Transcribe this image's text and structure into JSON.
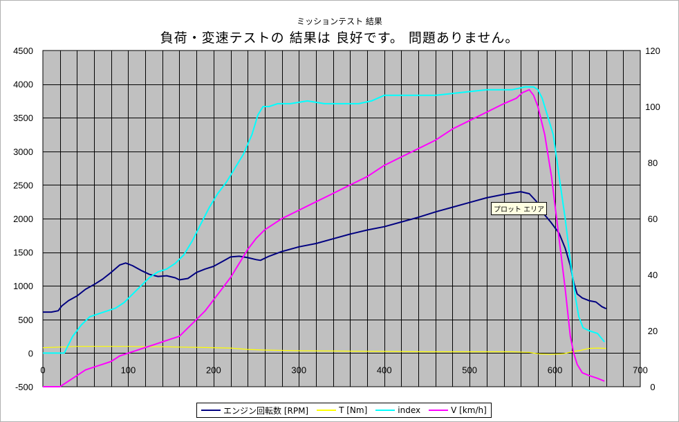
{
  "header": {
    "subtitle": "ミッションテスト 結果",
    "title": "負荷・変速テストの 結果は 良好です。 問題ありません。"
  },
  "tooltip": {
    "text": "プロット エリア"
  },
  "colors": {
    "plot_bg": "#c0c0c0",
    "grid": "#000000"
  },
  "chart_data": {
    "type": "line",
    "title": "負荷・変速テストの 結果は 良好です。 問題ありません。",
    "subtitle": "ミッションテスト 結果",
    "xlim": [
      0,
      700
    ],
    "ylim": [
      -500,
      4500
    ],
    "y2lim": [
      0,
      120
    ],
    "grid": true,
    "legend_position": "bottom",
    "x_ticks": [
      0,
      100,
      200,
      300,
      400,
      500,
      600,
      700
    ],
    "y_ticks": [
      -500,
      0,
      500,
      1000,
      1500,
      2000,
      2500,
      3000,
      3500,
      4000,
      4500
    ],
    "y2_ticks": [
      0,
      20,
      40,
      60,
      80,
      100,
      120
    ],
    "series": [
      {
        "name": "エンジン回転数 [RPM]",
        "axis": "left",
        "color": "#000080",
        "points": [
          [
            0,
            610
          ],
          [
            10,
            610
          ],
          [
            18,
            630
          ],
          [
            22,
            700
          ],
          [
            30,
            780
          ],
          [
            40,
            850
          ],
          [
            50,
            950
          ],
          [
            60,
            1020
          ],
          [
            70,
            1100
          ],
          [
            80,
            1200
          ],
          [
            90,
            1310
          ],
          [
            97,
            1340
          ],
          [
            105,
            1300
          ],
          [
            115,
            1230
          ],
          [
            125,
            1170
          ],
          [
            135,
            1140
          ],
          [
            145,
            1150
          ],
          [
            155,
            1120
          ],
          [
            160,
            1090
          ],
          [
            170,
            1110
          ],
          [
            180,
            1200
          ],
          [
            190,
            1250
          ],
          [
            200,
            1290
          ],
          [
            210,
            1360
          ],
          [
            220,
            1430
          ],
          [
            230,
            1440
          ],
          [
            240,
            1420
          ],
          [
            250,
            1390
          ],
          [
            255,
            1380
          ],
          [
            265,
            1440
          ],
          [
            280,
            1510
          ],
          [
            300,
            1580
          ],
          [
            320,
            1630
          ],
          [
            340,
            1700
          ],
          [
            360,
            1770
          ],
          [
            380,
            1830
          ],
          [
            400,
            1880
          ],
          [
            420,
            1950
          ],
          [
            440,
            2020
          ],
          [
            460,
            2100
          ],
          [
            480,
            2170
          ],
          [
            500,
            2240
          ],
          [
            520,
            2310
          ],
          [
            540,
            2360
          ],
          [
            560,
            2400
          ],
          [
            570,
            2370
          ],
          [
            578,
            2260
          ],
          [
            585,
            2100
          ],
          [
            595,
            1950
          ],
          [
            605,
            1780
          ],
          [
            612,
            1560
          ],
          [
            618,
            1300
          ],
          [
            622,
            1050
          ],
          [
            626,
            880
          ],
          [
            632,
            820
          ],
          [
            640,
            780
          ],
          [
            648,
            760
          ],
          [
            655,
            690
          ],
          [
            660,
            660
          ]
        ]
      },
      {
        "name": "T [Nm]",
        "axis": "left",
        "color": "#ffff00",
        "points": [
          [
            0,
            80
          ],
          [
            20,
            90
          ],
          [
            40,
            100
          ],
          [
            60,
            100
          ],
          [
            80,
            100
          ],
          [
            100,
            100
          ],
          [
            120,
            95
          ],
          [
            140,
            95
          ],
          [
            160,
            90
          ],
          [
            180,
            85
          ],
          [
            200,
            80
          ],
          [
            220,
            75
          ],
          [
            240,
            55
          ],
          [
            260,
            45
          ],
          [
            280,
            40
          ],
          [
            300,
            35
          ],
          [
            350,
            30
          ],
          [
            400,
            25
          ],
          [
            450,
            20
          ],
          [
            500,
            20
          ],
          [
            550,
            20
          ],
          [
            570,
            10
          ],
          [
            580,
            -10
          ],
          [
            595,
            -20
          ],
          [
            610,
            -10
          ],
          [
            620,
            20
          ],
          [
            630,
            40
          ],
          [
            640,
            70
          ],
          [
            650,
            75
          ],
          [
            660,
            70
          ]
        ]
      },
      {
        "name": "index",
        "axis": "right",
        "color": "#00ffff",
        "points": [
          [
            0,
            12
          ],
          [
            20,
            12
          ],
          [
            25,
            12
          ],
          [
            35,
            18
          ],
          [
            45,
            22
          ],
          [
            55,
            25
          ],
          [
            65,
            26
          ],
          [
            75,
            27
          ],
          [
            85,
            28
          ],
          [
            95,
            30
          ],
          [
            105,
            33
          ],
          [
            115,
            36
          ],
          [
            125,
            39
          ],
          [
            135,
            41
          ],
          [
            145,
            42
          ],
          [
            155,
            44
          ],
          [
            165,
            47
          ],
          [
            175,
            52
          ],
          [
            185,
            58
          ],
          [
            195,
            64
          ],
          [
            205,
            69
          ],
          [
            215,
            73
          ],
          [
            225,
            78
          ],
          [
            235,
            83
          ],
          [
            245,
            90
          ],
          [
            252,
            97
          ],
          [
            258,
            100
          ],
          [
            265,
            100
          ],
          [
            275,
            101
          ],
          [
            290,
            101
          ],
          [
            310,
            102
          ],
          [
            330,
            101
          ],
          [
            350,
            101
          ],
          [
            370,
            101
          ],
          [
            385,
            102
          ],
          [
            400,
            104
          ],
          [
            430,
            104
          ],
          [
            460,
            104
          ],
          [
            490,
            105
          ],
          [
            520,
            106
          ],
          [
            550,
            106
          ],
          [
            565,
            107
          ],
          [
            575,
            107
          ],
          [
            580,
            106
          ],
          [
            585,
            103
          ],
          [
            590,
            98
          ],
          [
            598,
            90
          ],
          [
            605,
            75
          ],
          [
            612,
            60
          ],
          [
            618,
            45
          ],
          [
            624,
            32
          ],
          [
            628,
            25
          ],
          [
            633,
            21
          ],
          [
            640,
            20
          ],
          [
            650,
            19
          ],
          [
            658,
            16
          ]
        ]
      },
      {
        "name": "V [km/h]",
        "axis": "right",
        "color": "#ff00ff",
        "points": [
          [
            0,
            0
          ],
          [
            20,
            0
          ],
          [
            30,
            2
          ],
          [
            40,
            4
          ],
          [
            50,
            6
          ],
          [
            60,
            7
          ],
          [
            70,
            8
          ],
          [
            80,
            9
          ],
          [
            90,
            11
          ],
          [
            100,
            12
          ],
          [
            110,
            13
          ],
          [
            120,
            14
          ],
          [
            130,
            15
          ],
          [
            140,
            16
          ],
          [
            150,
            17
          ],
          [
            160,
            18
          ],
          [
            170,
            21
          ],
          [
            180,
            24
          ],
          [
            190,
            27
          ],
          [
            200,
            31
          ],
          [
            210,
            35
          ],
          [
            220,
            39
          ],
          [
            230,
            44
          ],
          [
            240,
            49
          ],
          [
            250,
            53
          ],
          [
            260,
            56
          ],
          [
            270,
            58
          ],
          [
            280,
            60
          ],
          [
            300,
            63
          ],
          [
            320,
            66
          ],
          [
            340,
            69
          ],
          [
            360,
            72
          ],
          [
            380,
            75
          ],
          [
            400,
            79
          ],
          [
            420,
            82
          ],
          [
            440,
            85
          ],
          [
            460,
            88
          ],
          [
            480,
            92
          ],
          [
            500,
            95
          ],
          [
            520,
            98
          ],
          [
            540,
            101
          ],
          [
            555,
            103
          ],
          [
            562,
            105
          ],
          [
            570,
            106
          ],
          [
            575,
            104
          ],
          [
            580,
            100
          ],
          [
            588,
            90
          ],
          [
            596,
            75
          ],
          [
            604,
            55
          ],
          [
            612,
            35
          ],
          [
            618,
            18
          ],
          [
            622,
            12
          ],
          [
            626,
            8
          ],
          [
            632,
            5
          ],
          [
            640,
            4
          ],
          [
            650,
            3
          ],
          [
            658,
            2
          ]
        ]
      }
    ]
  },
  "legend": [
    {
      "label": "エンジン回転数 [RPM]",
      "color": "#000080"
    },
    {
      "label": "T [Nm]",
      "color": "#ffff00"
    },
    {
      "label": "index",
      "color": "#00ffff"
    },
    {
      "label": "V [km/h]",
      "color": "#ff00ff"
    }
  ]
}
